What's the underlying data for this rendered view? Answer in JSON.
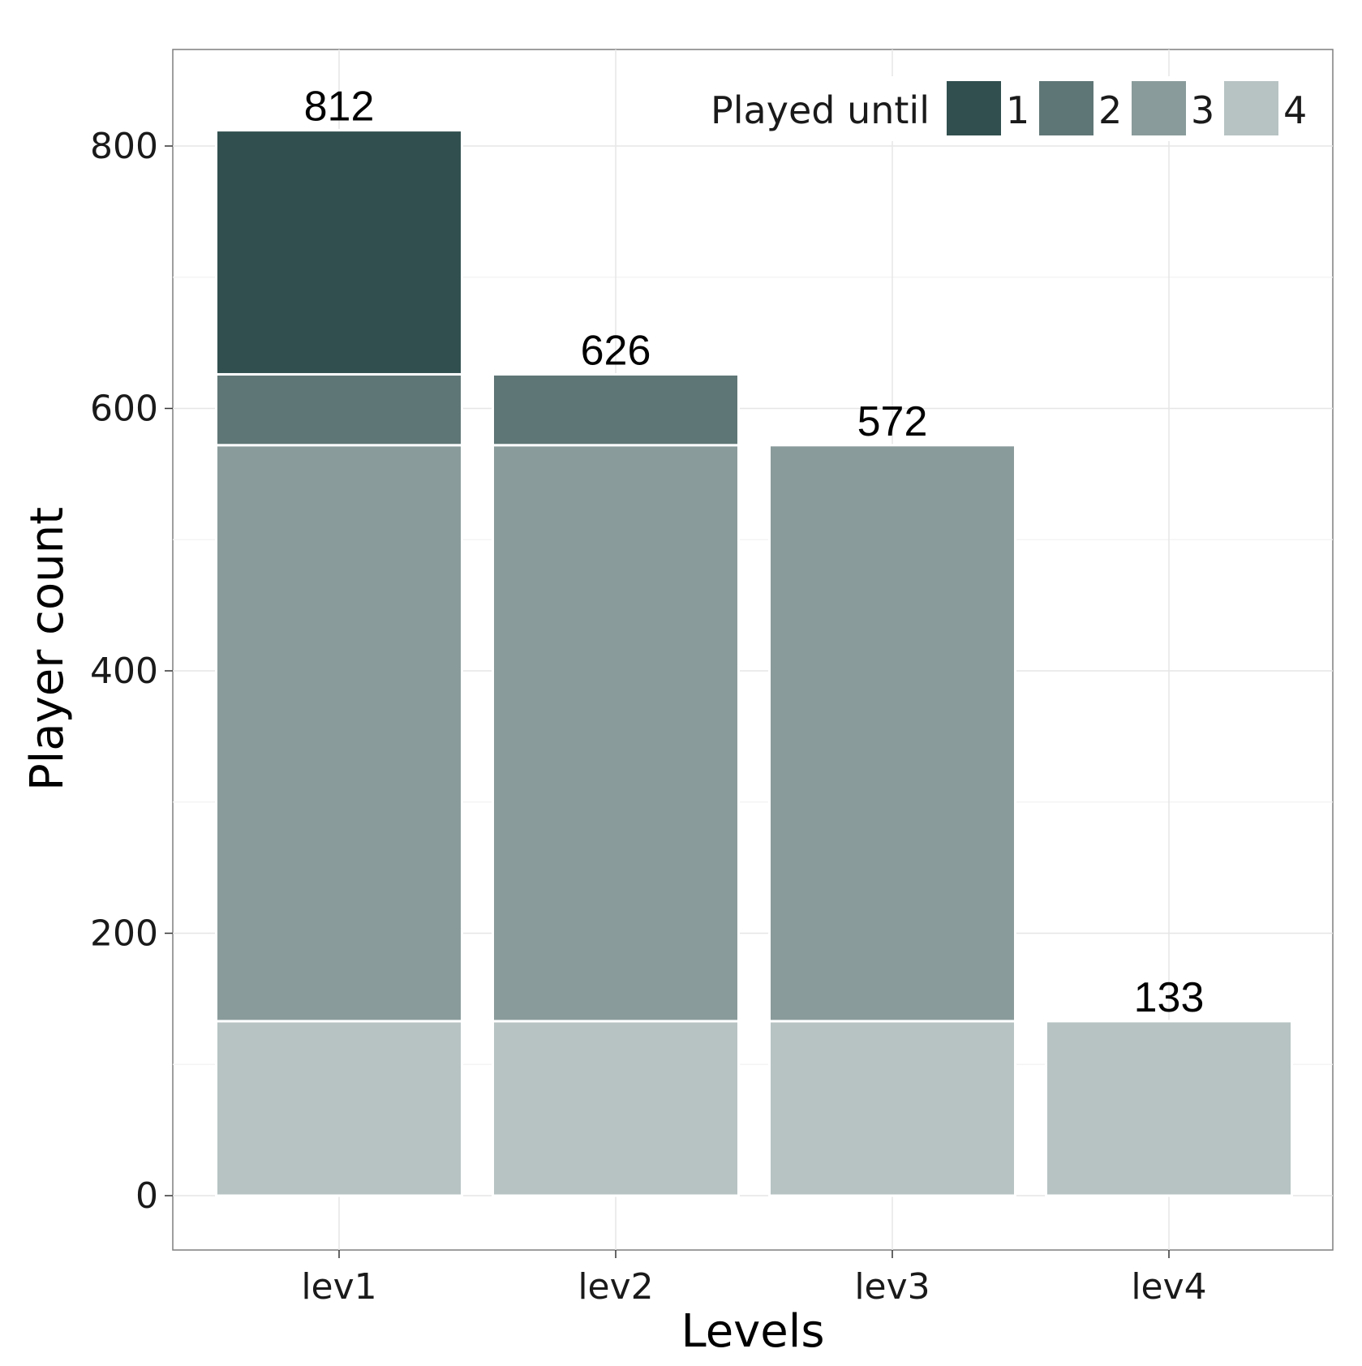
{
  "chart_data": {
    "type": "bar",
    "stacked": true,
    "categories": [
      "lev1",
      "lev2",
      "lev3",
      "lev4"
    ],
    "series": [
      {
        "name": "1",
        "color": "#314f4f",
        "values": [
          186,
          0,
          0,
          0
        ]
      },
      {
        "name": "2",
        "color": "#5f7676",
        "values": [
          54,
          54,
          0,
          0
        ]
      },
      {
        "name": "3",
        "color": "#8a9b9b",
        "values": [
          439,
          439,
          439,
          0
        ]
      },
      {
        "name": "4",
        "color": "#b7c3c3",
        "values": [
          133,
          133,
          133,
          133
        ]
      }
    ],
    "totals": [
      812,
      626,
      572,
      133
    ],
    "total_labels": [
      "812",
      "626",
      "572",
      "133"
    ],
    "xlabel": "Levels",
    "ylabel": "Player count",
    "yticks": [
      0,
      200,
      400,
      600,
      800
    ],
    "ytick_labels": [
      "0",
      "200",
      "400",
      "600",
      "800"
    ],
    "ylim": [
      -40,
      875
    ],
    "grid": true,
    "legend": {
      "title": "Played until",
      "position": "top-right",
      "orientation": "horizontal",
      "labels": [
        "1",
        "2",
        "3",
        "4"
      ]
    }
  }
}
